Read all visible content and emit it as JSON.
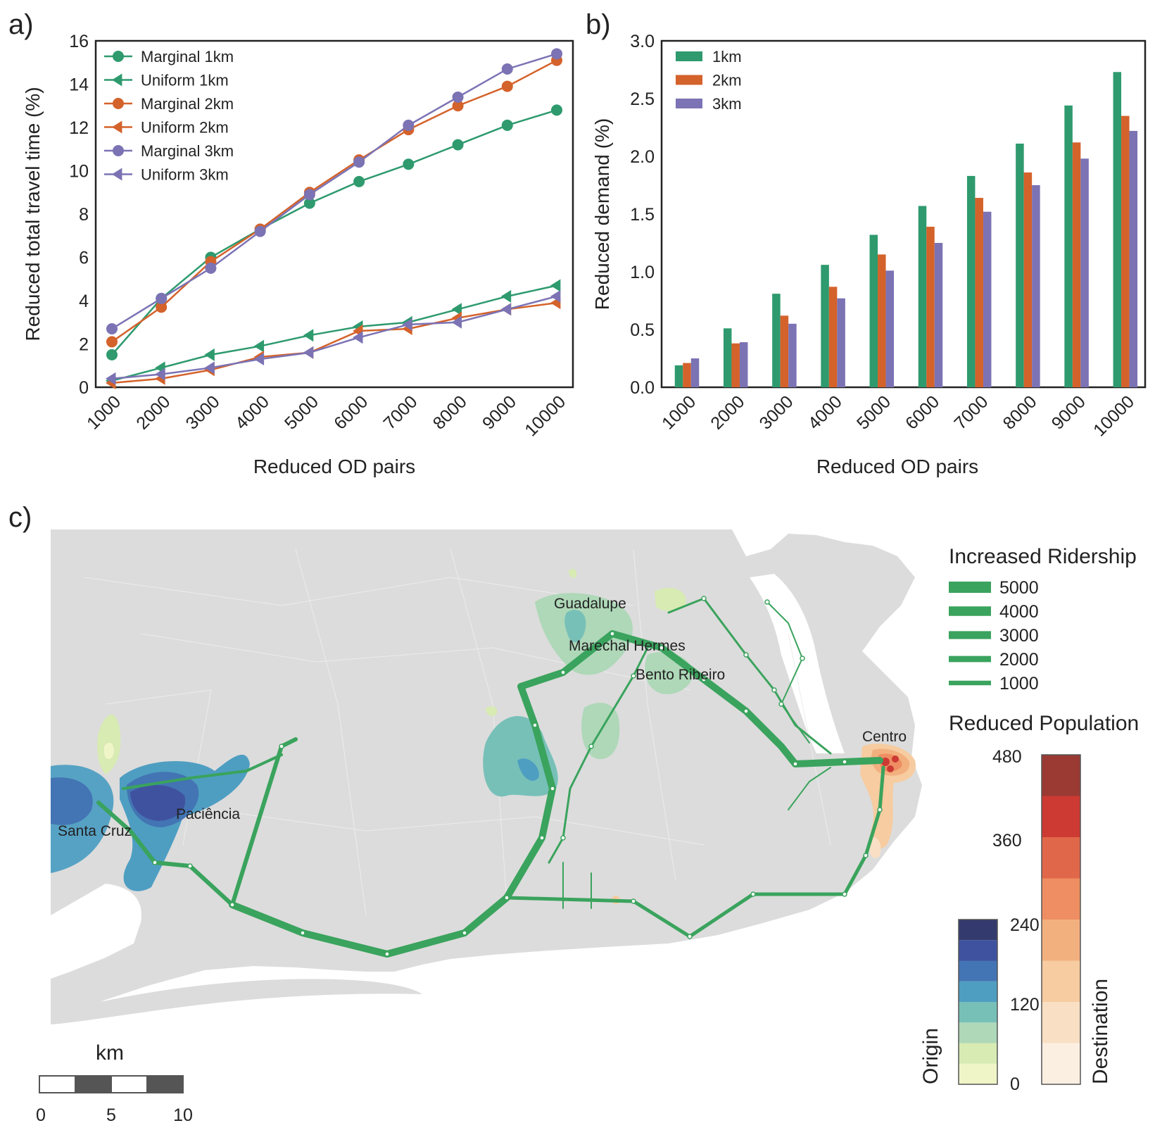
{
  "panels": {
    "a": "a)",
    "b": "b)",
    "c": "c)"
  },
  "colors": {
    "green": "#2e9a6e",
    "orange": "#d4622b",
    "purple": "#7b73b4",
    "map_bg": "#dcdcdc",
    "line_green": "#3aa35d"
  },
  "chart_data": [
    {
      "type": "line",
      "x": [
        1000,
        2000,
        3000,
        4000,
        5000,
        6000,
        7000,
        8000,
        9000,
        10000
      ],
      "xticks": [
        "1000",
        "2000",
        "3000",
        "4000",
        "5000",
        "6000",
        "7000",
        "8000",
        "9000",
        "10000"
      ],
      "xlabel": "Reduced OD pairs",
      "ylabel": "Reduced total travel time (%)",
      "ylim": [
        0,
        16
      ],
      "yticks": [
        "0",
        "2",
        "4",
        "6",
        "8",
        "10",
        "12",
        "14",
        "16"
      ],
      "legend_position": "top-left",
      "grid": false,
      "series": [
        {
          "name": "Marginal 1km",
          "marker": "circle",
          "color": "#2e9a6e",
          "values": [
            1.5,
            4.1,
            6.0,
            7.3,
            8.5,
            9.5,
            10.3,
            11.2,
            12.1,
            12.8
          ]
        },
        {
          "name": "Uniform 1km",
          "marker": "triangle-left",
          "color": "#2e9a6e",
          "values": [
            0.3,
            0.9,
            1.5,
            1.9,
            2.4,
            2.8,
            3.0,
            3.6,
            4.2,
            4.7
          ]
        },
        {
          "name": "Marginal 2km",
          "marker": "circle",
          "color": "#d4622b",
          "values": [
            2.1,
            3.7,
            5.8,
            7.3,
            9.0,
            10.5,
            11.9,
            13.0,
            13.9,
            15.1
          ]
        },
        {
          "name": "Uniform 2km",
          "marker": "triangle-left",
          "color": "#d4622b",
          "values": [
            0.2,
            0.4,
            0.8,
            1.4,
            1.6,
            2.6,
            2.7,
            3.2,
            3.6,
            3.9
          ]
        },
        {
          "name": "Marginal 3km",
          "marker": "circle",
          "color": "#7b73b4",
          "values": [
            2.7,
            4.1,
            5.5,
            7.2,
            8.9,
            10.4,
            12.1,
            13.4,
            14.7,
            15.4
          ]
        },
        {
          "name": "Uniform 3km",
          "marker": "triangle-left",
          "color": "#7b73b4",
          "values": [
            0.4,
            0.6,
            0.9,
            1.3,
            1.6,
            2.3,
            2.9,
            3.0,
            3.6,
            4.2
          ]
        }
      ]
    },
    {
      "type": "bar",
      "categories": [
        "1000",
        "2000",
        "3000",
        "4000",
        "5000",
        "6000",
        "7000",
        "8000",
        "9000",
        "10000"
      ],
      "xlabel": "Reduced OD pairs",
      "ylabel": "Reduced demand (%)",
      "ylim": [
        0,
        3.0
      ],
      "yticks": [
        "0.0",
        "0.5",
        "1.0",
        "1.5",
        "2.0",
        "2.5",
        "3.0"
      ],
      "legend_position": "top-left",
      "grid": false,
      "series": [
        {
          "name": "1km",
          "color": "#2e9a6e",
          "values": [
            0.19,
            0.51,
            0.81,
            1.06,
            1.32,
            1.57,
            1.83,
            2.11,
            2.44,
            2.73
          ]
        },
        {
          "name": "2km",
          "color": "#d4622b",
          "values": [
            0.21,
            0.38,
            0.62,
            0.87,
            1.15,
            1.39,
            1.64,
            1.86,
            2.12,
            2.35
          ]
        },
        {
          "name": "3km",
          "color": "#7b73b4",
          "values": [
            0.25,
            0.39,
            0.55,
            0.77,
            1.01,
            1.25,
            1.52,
            1.75,
            1.98,
            2.22
          ]
        }
      ]
    }
  ],
  "map": {
    "labels": {
      "guadalupe": "Guadalupe",
      "marechal": "Marechal Hermes",
      "bento": "Bento Ribeiro",
      "centro": "Centro",
      "paciencia": "Paciência",
      "santa_cruz": "Santa Cruz"
    },
    "ridership_legend": {
      "title": "Increased Ridership",
      "items": [
        {
          "label": "5000",
          "value": 5000
        },
        {
          "label": "4000",
          "value": 4000
        },
        {
          "label": "3000",
          "value": 3000
        },
        {
          "label": "2000",
          "value": 2000
        },
        {
          "label": "1000",
          "value": 1000
        }
      ]
    },
    "population_legend": {
      "title": "Reduced Population",
      "origin": {
        "label": "Origin",
        "ticks": [
          "0",
          "120",
          "240"
        ],
        "colors": [
          "#f0f5c8",
          "#d7ebb3",
          "#aed8b8",
          "#77c0b8",
          "#4e9ec2",
          "#4374b3",
          "#3f52a0",
          "#323a6e"
        ]
      },
      "destination": {
        "label": "Destination",
        "ticks": [
          "480",
          "360"
        ],
        "colors": [
          "#fbefe2",
          "#f9e0c4",
          "#f6cca0",
          "#f3b07f",
          "#ee8e62",
          "#e0674a",
          "#cc3a33",
          "#9a3a33"
        ]
      }
    },
    "scale_bar": {
      "unit": "km",
      "ticks": [
        "0",
        "5",
        "10"
      ]
    }
  }
}
